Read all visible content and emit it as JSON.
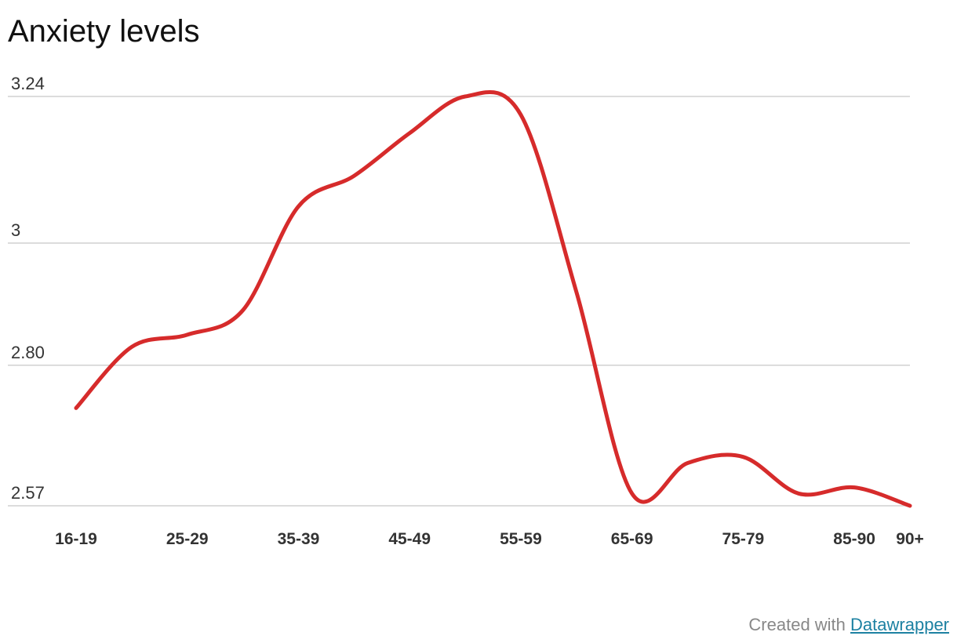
{
  "chart_data": {
    "type": "line",
    "title": "Anxiety levels",
    "categories": [
      "16-19",
      null,
      "25-29",
      null,
      "35-39",
      null,
      "45-49",
      null,
      "55-59",
      null,
      "65-69",
      null,
      "75-79",
      null,
      "85-90",
      "90+"
    ],
    "series": [
      {
        "color": "#d62b2b",
        "values": [
          2.73,
          2.83,
          2.85,
          2.89,
          3.06,
          3.11,
          3.18,
          3.24,
          3.21,
          2.92,
          2.59,
          2.64,
          2.65,
          2.59,
          2.6,
          2.57
        ]
      }
    ],
    "ylim": [
      2.57,
      3.24
    ],
    "yticks": [
      3.24,
      3,
      {
        "value": 2.8,
        "label": "2.80"
      },
      2.57
    ],
    "grid": true
  },
  "credit": {
    "text": "Created with",
    "link": "Datawrapper"
  }
}
